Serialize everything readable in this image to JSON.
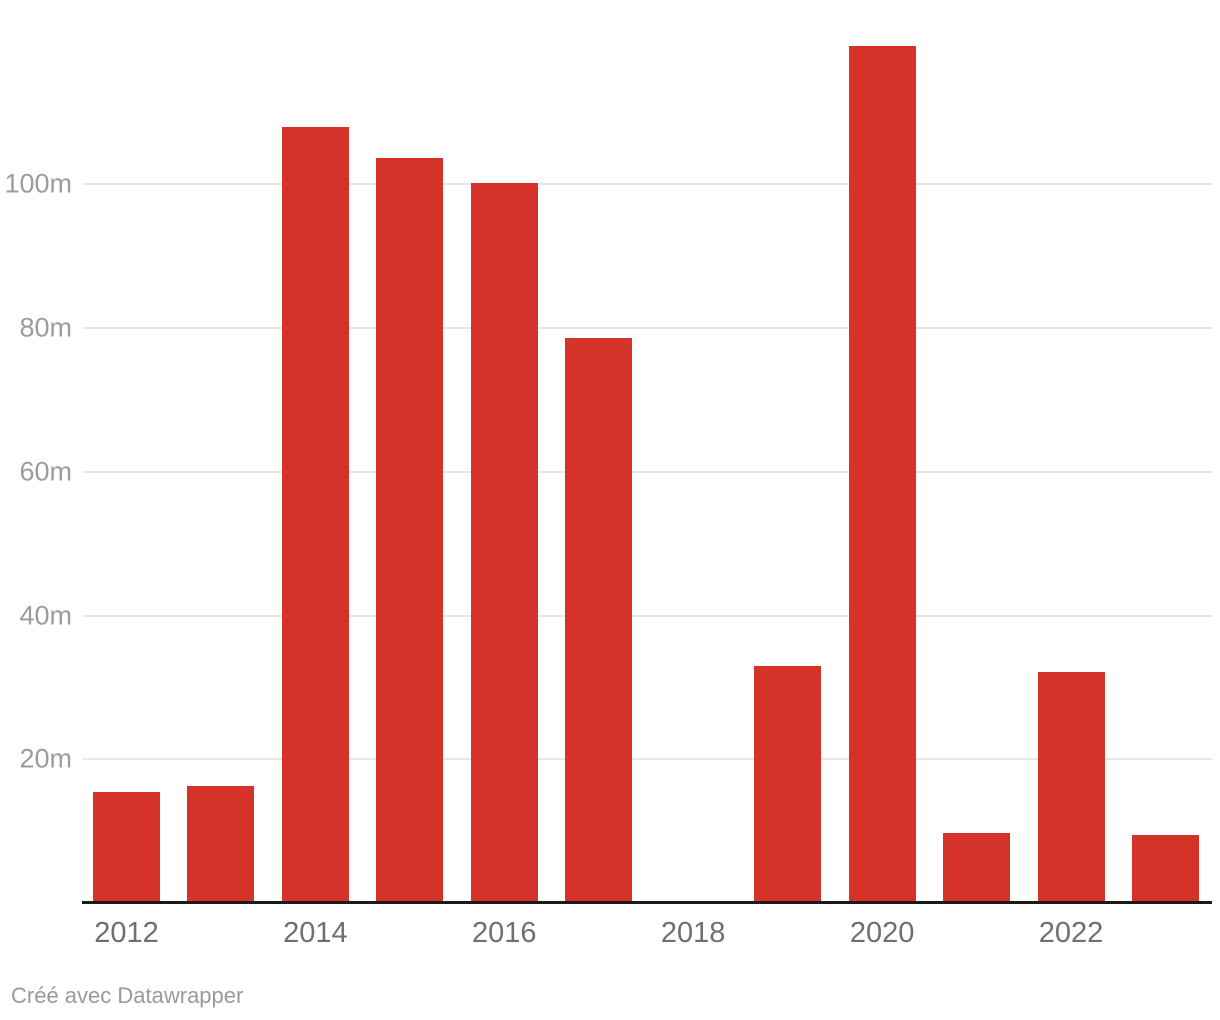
{
  "chart_data": {
    "type": "bar",
    "title": "",
    "xlabel": "",
    "ylabel": "",
    "categories": [
      "2012",
      "2013",
      "2014",
      "2015",
      "2016",
      "2017",
      "2018",
      "2019",
      "2020",
      "2021",
      "2022",
      "2023"
    ],
    "values": [
      15.5,
      16.3,
      107.9,
      103.6,
      100.2,
      78.6,
      0,
      33,
      119.2,
      9.7,
      32.2,
      9.4
    ],
    "value_suffix": "m",
    "ylim": [
      0,
      125
    ],
    "y_ticks": [
      {
        "value": 20,
        "label": "20m"
      },
      {
        "value": 40,
        "label": "40m"
      },
      {
        "value": 60,
        "label": "60m"
      },
      {
        "value": 80,
        "label": "80m"
      },
      {
        "value": 100,
        "label": "100m"
      }
    ],
    "x_tick_labels": [
      "2012",
      "2014",
      "2016",
      "2018",
      "2020",
      "2022"
    ],
    "grid": "horizontal-only",
    "legend": "none",
    "series_name": "",
    "bar_color": "#d5322a"
  },
  "colors": {
    "background": "#ffffff",
    "bar": "#d5322a",
    "gridline": "#e7e7e7",
    "axis_line": "#1a1a1a",
    "y_tick_label": "#9c9c9c",
    "x_tick_label": "#6f6f6f",
    "footer_text": "#9a9a9a"
  },
  "footer": {
    "credit": "Créé avec Datawrapper"
  }
}
